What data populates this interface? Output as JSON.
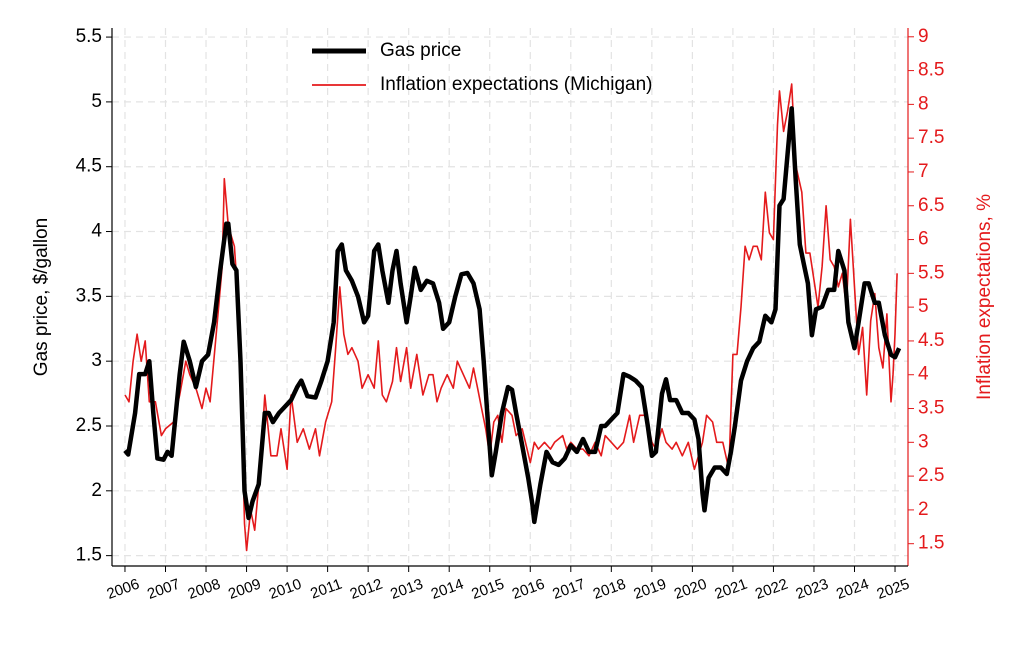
{
  "chart_data": {
    "type": "line",
    "y_label": "Gas price, $/gallon",
    "y2_label": "Inflation expectations, %",
    "xlim": [
      2005.68,
      2025.32
    ],
    "xticks": [
      2006,
      2007,
      2008,
      2009,
      2010,
      2011,
      2012,
      2013,
      2014,
      2015,
      2016,
      2017,
      2018,
      2019,
      2020,
      2021,
      2022,
      2023,
      2024,
      2025
    ],
    "ylim": [
      1.42,
      5.57
    ],
    "yticks": [
      1.5,
      2,
      2.5,
      3,
      3.5,
      4,
      4.5,
      5,
      5.5
    ],
    "y2lim": [
      1.17,
      9.13
    ],
    "y2ticks": [
      1.5,
      2,
      2.5,
      3,
      3.5,
      4,
      4.5,
      5,
      5.5,
      6,
      6.5,
      7,
      7.5,
      8,
      8.5,
      9
    ],
    "grid": true,
    "legend": "top",
    "series": [
      {
        "name": "Gas price",
        "color": "#000000",
        "axis": "y",
        "x": [
          2006.0,
          2006.08,
          2006.25,
          2006.35,
          2006.5,
          2006.6,
          2006.7,
          2006.8,
          2006.95,
          2007.05,
          2007.15,
          2007.35,
          2007.45,
          2007.6,
          2007.75,
          2007.9,
          2008.05,
          2008.2,
          2008.35,
          2008.5,
          2008.55,
          2008.65,
          2008.75,
          2008.85,
          2008.95,
          2009.05,
          2009.15,
          2009.3,
          2009.45,
          2009.55,
          2009.65,
          2009.8,
          2009.95,
          2010.1,
          2010.25,
          2010.35,
          2010.5,
          2010.7,
          2010.85,
          2011.0,
          2011.15,
          2011.25,
          2011.35,
          2011.45,
          2011.6,
          2011.75,
          2011.9,
          2012.0,
          2012.15,
          2012.25,
          2012.35,
          2012.5,
          2012.6,
          2012.7,
          2012.8,
          2012.95,
          2013.05,
          2013.15,
          2013.3,
          2013.45,
          2013.6,
          2013.75,
          2013.85,
          2014.0,
          2014.15,
          2014.3,
          2014.45,
          2014.6,
          2014.75,
          2014.85,
          2014.95,
          2015.05,
          2015.15,
          2015.3,
          2015.45,
          2015.55,
          2015.65,
          2015.8,
          2015.95,
          2016.05,
          2016.1,
          2016.25,
          2016.4,
          2016.55,
          2016.7,
          2016.85,
          2017.0,
          2017.15,
          2017.3,
          2017.45,
          2017.6,
          2017.75,
          2017.85,
          2018.0,
          2018.15,
          2018.3,
          2018.45,
          2018.6,
          2018.75,
          2018.9,
          2019.0,
          2019.1,
          2019.25,
          2019.35,
          2019.45,
          2019.6,
          2019.75,
          2019.9,
          2020.05,
          2020.15,
          2020.25,
          2020.3,
          2020.4,
          2020.55,
          2020.7,
          2020.85,
          2020.95,
          2021.05,
          2021.2,
          2021.35,
          2021.5,
          2021.65,
          2021.8,
          2021.95,
          2022.05,
          2022.15,
          2022.25,
          2022.35,
          2022.45,
          2022.55,
          2022.65,
          2022.75,
          2022.85,
          2022.95,
          2023.05,
          2023.2,
          2023.35,
          2023.5,
          2023.6,
          2023.75,
          2023.85,
          2024.0,
          2024.1,
          2024.25,
          2024.35,
          2024.5,
          2024.6,
          2024.75,
          2024.9,
          2025.0,
          2025.1
        ],
        "values": [
          2.31,
          2.28,
          2.6,
          2.9,
          2.9,
          3.0,
          2.6,
          2.25,
          2.24,
          2.3,
          2.27,
          2.9,
          3.15,
          3.0,
          2.8,
          3.0,
          3.05,
          3.3,
          3.7,
          4.06,
          4.06,
          3.75,
          3.7,
          3.0,
          2.0,
          1.79,
          1.92,
          2.05,
          2.6,
          2.6,
          2.53,
          2.6,
          2.65,
          2.7,
          2.8,
          2.85,
          2.73,
          2.72,
          2.85,
          3.0,
          3.3,
          3.85,
          3.9,
          3.7,
          3.62,
          3.5,
          3.3,
          3.35,
          3.85,
          3.9,
          3.7,
          3.45,
          3.7,
          3.85,
          3.6,
          3.3,
          3.5,
          3.72,
          3.55,
          3.62,
          3.6,
          3.45,
          3.25,
          3.3,
          3.5,
          3.67,
          3.68,
          3.6,
          3.4,
          3.0,
          2.55,
          2.12,
          2.3,
          2.6,
          2.8,
          2.78,
          2.6,
          2.35,
          2.1,
          1.9,
          1.76,
          2.05,
          2.3,
          2.22,
          2.2,
          2.25,
          2.35,
          2.3,
          2.4,
          2.3,
          2.3,
          2.5,
          2.5,
          2.55,
          2.6,
          2.9,
          2.88,
          2.85,
          2.8,
          2.5,
          2.27,
          2.3,
          2.75,
          2.86,
          2.7,
          2.7,
          2.6,
          2.6,
          2.55,
          2.4,
          1.98,
          1.85,
          2.1,
          2.18,
          2.18,
          2.13,
          2.3,
          2.5,
          2.85,
          3.0,
          3.1,
          3.15,
          3.35,
          3.3,
          3.4,
          4.2,
          4.25,
          4.6,
          4.95,
          4.4,
          3.9,
          3.75,
          3.6,
          3.2,
          3.4,
          3.42,
          3.55,
          3.55,
          3.85,
          3.7,
          3.3,
          3.1,
          3.3,
          3.6,
          3.6,
          3.45,
          3.45,
          3.2,
          3.05,
          3.03,
          3.1
        ]
      },
      {
        "name": "Inflation expectations (Michigan)",
        "color": "#e41a1c",
        "axis": "y2",
        "x": [
          2006.0,
          2006.1,
          2006.2,
          2006.3,
          2006.4,
          2006.5,
          2006.6,
          2006.75,
          2006.9,
          2007.0,
          2007.2,
          2007.35,
          2007.5,
          2007.6,
          2007.75,
          2007.9,
          2008.0,
          2008.1,
          2008.25,
          2008.4,
          2008.45,
          2008.55,
          2008.7,
          2008.8,
          2008.9,
          2008.95,
          2009.0,
          2009.1,
          2009.2,
          2009.35,
          2009.45,
          2009.6,
          2009.75,
          2009.85,
          2010.0,
          2010.1,
          2010.25,
          2010.4,
          2010.55,
          2010.7,
          2010.8,
          2010.95,
          2011.1,
          2011.2,
          2011.3,
          2011.4,
          2011.5,
          2011.6,
          2011.75,
          2011.85,
          2012.0,
          2012.15,
          2012.25,
          2012.35,
          2012.45,
          2012.6,
          2012.7,
          2012.8,
          2012.95,
          2013.05,
          2013.2,
          2013.35,
          2013.5,
          2013.6,
          2013.7,
          2013.8,
          2013.95,
          2014.1,
          2014.2,
          2014.35,
          2014.5,
          2014.6,
          2014.7,
          2014.8,
          2014.9,
          2015.0,
          2015.1,
          2015.2,
          2015.3,
          2015.4,
          2015.55,
          2015.65,
          2015.8,
          2016.0,
          2016.1,
          2016.2,
          2016.35,
          2016.5,
          2016.6,
          2016.8,
          2016.9,
          2017.0,
          2017.15,
          2017.3,
          2017.45,
          2017.6,
          2017.75,
          2017.85,
          2018.0,
          2018.15,
          2018.3,
          2018.45,
          2018.55,
          2018.7,
          2018.85,
          2019.0,
          2019.1,
          2019.25,
          2019.35,
          2019.5,
          2019.6,
          2019.75,
          2019.9,
          2020.05,
          2020.15,
          2020.25,
          2020.35,
          2020.5,
          2020.6,
          2020.75,
          2020.9,
          2021.0,
          2021.1,
          2021.2,
          2021.3,
          2021.4,
          2021.5,
          2021.6,
          2021.7,
          2021.8,
          2021.9,
          2022.0,
          2022.1,
          2022.15,
          2022.25,
          2022.35,
          2022.45,
          2022.55,
          2022.7,
          2022.8,
          2022.9,
          2023.0,
          2023.1,
          2023.2,
          2023.3,
          2023.4,
          2023.5,
          2023.6,
          2023.7,
          2023.8,
          2023.9,
          2024.0,
          2024.1,
          2024.2,
          2024.3,
          2024.4,
          2024.5,
          2024.6,
          2024.7,
          2024.8,
          2024.9,
          2024.95,
          2025.0,
          2025.05
        ],
        "values": [
          3.7,
          3.6,
          4.2,
          4.6,
          4.2,
          4.5,
          3.6,
          3.6,
          3.1,
          3.2,
          3.3,
          3.7,
          4.2,
          4.0,
          3.8,
          3.5,
          3.8,
          3.6,
          4.6,
          5.6,
          6.9,
          6.2,
          5.9,
          5.0,
          3.0,
          1.8,
          1.4,
          2.0,
          1.7,
          2.7,
          3.7,
          2.8,
          2.8,
          3.2,
          2.6,
          3.7,
          3.0,
          3.2,
          2.9,
          3.2,
          2.8,
          3.3,
          3.6,
          4.4,
          5.3,
          4.6,
          4.3,
          4.4,
          4.2,
          3.8,
          4.0,
          3.8,
          4.5,
          3.7,
          3.6,
          3.9,
          4.4,
          3.9,
          4.4,
          3.8,
          4.3,
          3.7,
          4.0,
          4.0,
          3.6,
          3.8,
          4.0,
          3.8,
          4.2,
          4.0,
          3.8,
          4.1,
          3.8,
          3.5,
          3.2,
          2.8,
          3.3,
          3.4,
          3.0,
          3.5,
          3.4,
          3.1,
          3.2,
          2.7,
          3.0,
          2.9,
          3.0,
          2.9,
          3.0,
          3.1,
          2.9,
          3.0,
          2.9,
          2.9,
          2.8,
          3.0,
          2.8,
          3.1,
          3.0,
          2.9,
          3.0,
          3.4,
          3.0,
          3.4,
          3.4,
          3.0,
          2.9,
          3.2,
          3.0,
          2.9,
          3.0,
          2.8,
          3.0,
          2.6,
          2.8,
          3.0,
          3.4,
          3.3,
          3.0,
          3.0,
          2.6,
          4.3,
          4.3,
          5.0,
          5.9,
          5.7,
          5.9,
          5.9,
          5.7,
          6.7,
          6.1,
          6.0,
          7.7,
          8.2,
          7.6,
          7.9,
          8.3,
          7.1,
          6.7,
          5.8,
          5.8,
          5.4,
          5.0,
          5.6,
          6.5,
          5.7,
          5.6,
          5.3,
          5.5,
          5.0,
          6.3,
          5.3,
          4.3,
          4.7,
          3.7,
          4.8,
          5.2,
          4.4,
          4.1,
          4.9,
          3.6,
          4.0,
          4.6,
          5.5
        ]
      }
    ]
  }
}
